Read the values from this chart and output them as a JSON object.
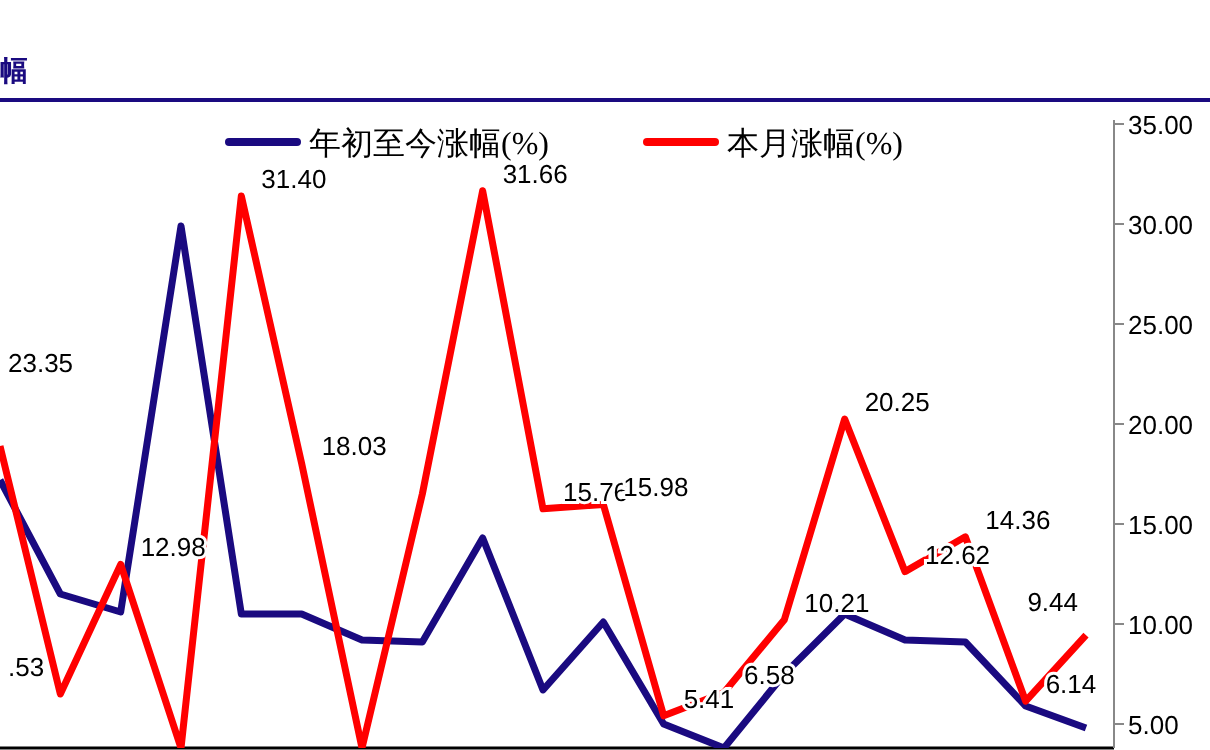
{
  "chart_data": {
    "type": "line",
    "title": "幅",
    "categories": [
      null,
      null,
      null,
      null,
      null,
      null,
      null,
      null,
      null,
      null,
      null,
      null,
      null,
      null,
      null,
      null,
      null,
      null,
      null
    ],
    "series": [
      {
        "name": "年初至今涨幅(%)",
        "color": "#1a0a80",
        "values": [
          17.2,
          11.5,
          10.6,
          29.9,
          10.5,
          10.5,
          9.2,
          9.1,
          14.3,
          6.7,
          10.1,
          5.0,
          3.8,
          7.5,
          10.5,
          9.2,
          9.1,
          5.9,
          4.8
        ]
      },
      {
        "name": "本月涨幅(%)",
        "color": "#ff0000",
        "values": [
          18.9,
          6.5,
          12.98,
          3.8,
          31.4,
          18.03,
          3.8,
          16.5,
          31.66,
          15.76,
          15.98,
          5.41,
          6.58,
          10.21,
          20.25,
          12.62,
          14.36,
          6.14,
          9.44
        ],
        "value_labels": [
          null,
          null,
          "12.98",
          null,
          "31.40",
          "18.03",
          null,
          null,
          "31.66",
          "15.76",
          "15.98",
          "5.41",
          "6.58",
          "10.21",
          "20.25",
          "12.62",
          "14.36",
          "6.14",
          "9.44"
        ]
      }
    ],
    "annotations": [
      "23.35",
      ".53"
    ],
    "ylim": [
      3.8,
      35.2
    ],
    "yticks": [
      {
        "value": 5,
        "label": "5.00"
      },
      {
        "value": 10,
        "label": "10.00"
      },
      {
        "value": 15,
        "label": "15.00"
      },
      {
        "value": 20,
        "label": "20.00"
      },
      {
        "value": 25,
        "label": "25.00"
      },
      {
        "value": 30,
        "label": "30.00"
      },
      {
        "value": 35,
        "label": "35.00"
      }
    ],
    "legend": "top",
    "grid": false,
    "marker": "none",
    "line_style": "solid"
  }
}
